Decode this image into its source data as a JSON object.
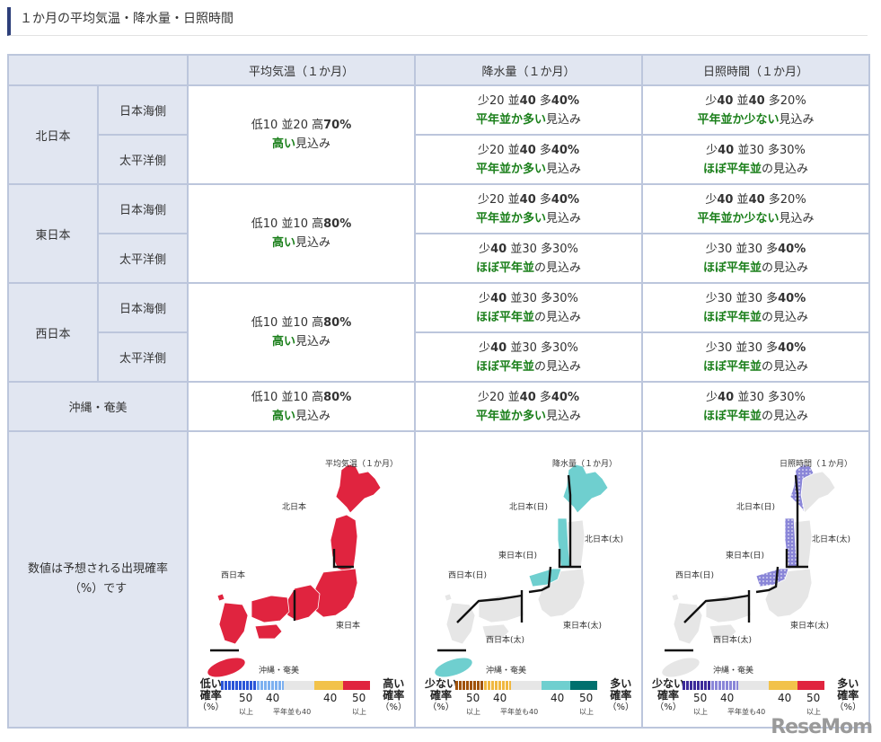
{
  "heading": "１か月の平均気温・降水量・日照時間",
  "columns": [
    "平均気温（１か月）",
    "降水量（１か月）",
    "日照時間（１か月）"
  ],
  "regions": [
    {
      "name": "北日本",
      "temp": {
        "line1": "低10 並20 高70%",
        "bold": "70%",
        "pre": "低10 並20 高",
        "label_bold": "高い",
        "label_rest": "見込み"
      },
      "subs": [
        {
          "name": "日本海側",
          "precip": {
            "pre": "少20 並",
            "b1": "40",
            "mid": " 多",
            "b2": "40%",
            "label_bold": "平年並か多い",
            "label_rest": "見込み"
          },
          "sun": {
            "pre": "少",
            "b1": "40",
            "mid": " 並",
            "b2": "40",
            "post": " 多20%",
            "label_bold": "平年並か少ない",
            "label_rest": "見込み"
          }
        },
        {
          "name": "太平洋側",
          "precip": {
            "pre": "少20 並",
            "b1": "40",
            "mid": " 多",
            "b2": "40%",
            "label_bold": "平年並か多い",
            "label_rest": "見込み"
          },
          "sun": {
            "pre": "少",
            "b1": "40",
            "mid": " 並30 多30%",
            "b2": "",
            "post": "",
            "label_bold": "ほぼ平年並",
            "label_rest": "の見込み"
          }
        }
      ]
    },
    {
      "name": "東日本",
      "temp": {
        "pre": "低10 並10 高",
        "bold": "80%",
        "label_bold": "高い",
        "label_rest": "見込み"
      },
      "subs": [
        {
          "name": "日本海側",
          "precip": {
            "pre": "少20 並",
            "b1": "40",
            "mid": " 多",
            "b2": "40%",
            "label_bold": "平年並か多い",
            "label_rest": "見込み"
          },
          "sun": {
            "pre": "少",
            "b1": "40",
            "mid": " 並",
            "b2": "40",
            "post": " 多20%",
            "label_bold": "平年並か少ない",
            "label_rest": "見込み"
          }
        },
        {
          "name": "太平洋側",
          "precip": {
            "pre": "少",
            "b1": "40",
            "mid": " 並30 多30%",
            "b2": "",
            "label_bold": "ほぼ平年並",
            "label_rest": "の見込み"
          },
          "sun": {
            "pre": "少30 並30 多",
            "b1": "40%",
            "mid": "",
            "b2": "",
            "post": "",
            "label_bold": "ほぼ平年並",
            "label_rest": "の見込み"
          }
        }
      ]
    },
    {
      "name": "西日本",
      "temp": {
        "pre": "低10 並10 高",
        "bold": "80%",
        "label_bold": "高い",
        "label_rest": "見込み"
      },
      "subs": [
        {
          "name": "日本海側",
          "precip": {
            "pre": "少",
            "b1": "40",
            "mid": " 並30 多30%",
            "b2": "",
            "label_bold": "ほぼ平年並",
            "label_rest": "の見込み"
          },
          "sun": {
            "pre": "少30 並30 多",
            "b1": "40%",
            "mid": "",
            "b2": "",
            "post": "",
            "label_bold": "ほぼ平年並",
            "label_rest": "の見込み"
          }
        },
        {
          "name": "太平洋側",
          "precip": {
            "pre": "少",
            "b1": "40",
            "mid": " 並30 多30%",
            "b2": "",
            "label_bold": "ほぼ平年並",
            "label_rest": "の見込み"
          },
          "sun": {
            "pre": "少30 並30 多",
            "b1": "40%",
            "mid": "",
            "b2": "",
            "post": "",
            "label_bold": "ほぼ平年並",
            "label_rest": "の見込み"
          }
        }
      ]
    }
  ],
  "okinawa": {
    "name": "沖縄・奄美",
    "temp": {
      "pre": "低10 並10 高",
      "bold": "80%",
      "label_bold": "高い",
      "label_rest": "見込み"
    },
    "precip": {
      "pre": "少20 並",
      "b1": "40",
      "mid": " 多",
      "b2": "40%",
      "label_bold": "平年並か多い",
      "label_rest": "見込み"
    },
    "sun": {
      "pre": "少",
      "b1": "40",
      "mid": " 並30 多30%",
      "label_bold": "ほぼ平年並",
      "label_rest": "の見込み"
    }
  },
  "note": "数値は予想される出現確率（%）です",
  "maps": {
    "temp": {
      "title": "平均気温（１か月）",
      "labels": {
        "north": "北日本",
        "west": "西日本",
        "east": "東日本",
        "okinawa": "沖縄・奄美"
      },
      "legend": {
        "low": "低い",
        "high": "高い",
        "rate": "確率",
        "pct": "（%）"
      }
    },
    "precip": {
      "title": "降水量（１か月）",
      "labels": {
        "north_sea": "北日本(日)",
        "north_pac": "北日本(太)",
        "east_sea": "東日本(日)",
        "west_sea": "西日本(日)",
        "east_pac": "東日本(太)",
        "west_pac": "西日本(太)",
        "okinawa": "沖縄・奄美"
      },
      "legend": {
        "low": "少ない",
        "high": "多い",
        "rate": "確率",
        "pct": "（%）"
      }
    },
    "sun": {
      "title": "日照時間（１か月）",
      "labels": {
        "north_sea": "北日本(日)",
        "north_pac": "北日本(太)",
        "east_sea": "東日本(日)",
        "west_sea": "西日本(日)",
        "east_pac": "東日本(太)",
        "west_pac": "西日本(太)",
        "okinawa": "沖縄・奄美"
      },
      "legend": {
        "low": "少ない",
        "high": "多い",
        "rate": "確率",
        "pct": "（%）"
      }
    }
  },
  "legend_ticks": {
    "t50a": "50",
    "t40a": "40",
    "t40b": "40",
    "t50b": "50",
    "ijo_a": "以上",
    "ijo_b": "以上",
    "normal": "平年並も40"
  },
  "colors": {
    "temp_high": "#e0243f",
    "precip_many": "#6fcfcf",
    "sun_few": "#8a86d8",
    "normal_grey": "#e6e6e6",
    "header_bg": "#e1e6f1",
    "green_text": "#1a7f1a",
    "accent": "#2d3f7a"
  },
  "watermark": "ReseMom"
}
